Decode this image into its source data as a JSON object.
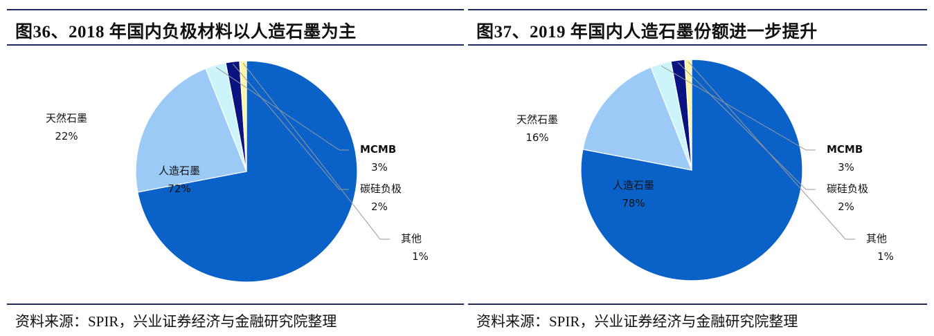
{
  "charts": [
    {
      "title": "图36、2018 年国内负极材料以人造石墨为主",
      "source": "资料来源：SPIR，兴业证券经济与金融研究院整理"
    },
    {
      "title": "图37、2019 年国内人造石墨份额进一步提升",
      "source": "资料来源：SPIR，兴业证券经济与金融研究院整理"
    }
  ],
  "chart_data": [
    {
      "type": "pie",
      "title": "图36、2018 年国内负极材料以人造石墨为主",
      "slices": [
        {
          "name": "人造石墨",
          "value": 72,
          "label": "72%",
          "color": "#0a62c8"
        },
        {
          "name": "天然石墨",
          "value": 22,
          "label": "22%",
          "color": "#9ccaf7"
        },
        {
          "name": "MCMB",
          "value": 3,
          "label": "3%",
          "color": "#ccf4fb"
        },
        {
          "name": "碳硅负极",
          "value": 2,
          "label": "2%",
          "color": "#0a1480"
        },
        {
          "name": "其他",
          "value": 1,
          "label": "1%",
          "color": "#fbf5a8"
        }
      ]
    },
    {
      "type": "pie",
      "title": "图37、2019 年国内人造石墨份额进一步提升",
      "slices": [
        {
          "name": "人造石墨",
          "value": 78,
          "label": "78%",
          "color": "#0a62c8"
        },
        {
          "name": "天然石墨",
          "value": 16,
          "label": "16%",
          "color": "#9ccaf7"
        },
        {
          "name": "MCMB",
          "value": 3,
          "label": "3%",
          "color": "#ccf4fb"
        },
        {
          "name": "碳硅负极",
          "value": 2,
          "label": "2%",
          "color": "#0a1480"
        },
        {
          "name": "其他",
          "value": 1,
          "label": "1%",
          "color": "#fbf5a8"
        }
      ]
    }
  ]
}
